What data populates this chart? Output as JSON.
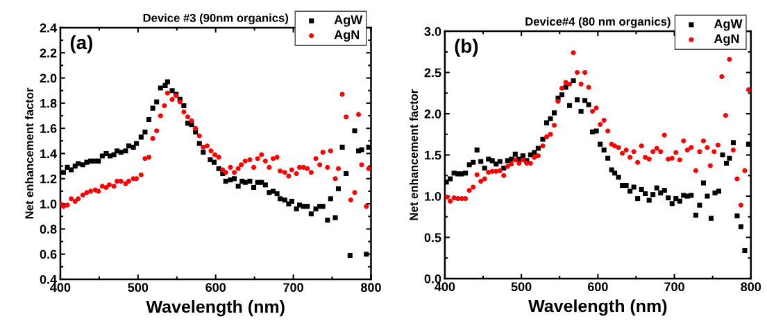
{
  "chart_data": [
    {
      "type": "scatter",
      "title": "Device #3 (90nm organics)",
      "xlabel": "Wavelength (nm)",
      "ylabel": "Net enhancement factor",
      "annotations": [
        "(a)"
      ],
      "xlim": [
        400,
        800
      ],
      "xticks": [
        400,
        500,
        600,
        700,
        800
      ],
      "ylim": [
        0.4,
        2.4
      ],
      "yticks": [
        0.4,
        0.6,
        0.8,
        {
          "value": 1,
          "label": "1.0"
        },
        1.2,
        1.4,
        1.6,
        1.8,
        {
          "value": 2,
          "label": "2.0"
        },
        2.2,
        2.4
      ],
      "legend": "top right",
      "grid": false,
      "series": [
        {
          "name": "AgW",
          "color": "#000000",
          "marker": "square",
          "x": [
            404,
            409,
            414,
            419,
            423,
            429,
            434,
            439,
            445,
            449,
            454,
            459,
            464,
            469,
            473,
            478,
            484,
            488,
            494,
            498,
            504,
            509,
            514,
            519,
            524,
            529,
            535,
            538,
            544,
            549,
            554,
            559,
            564,
            569,
            574,
            579,
            584,
            593,
            598,
            604,
            609,
            613,
            619,
            624,
            629,
            634,
            638,
            644,
            649,
            654,
            659,
            664,
            669,
            674,
            679,
            683,
            689,
            694,
            698,
            704,
            708,
            713,
            718,
            723,
            729,
            734,
            738,
            744,
            748,
            754,
            758,
            763,
            768,
            773,
            779,
            784,
            788,
            794,
            797
          ],
          "values": [
            1.25,
            1.29,
            1.27,
            1.3,
            1.32,
            1.31,
            1.33,
            1.34,
            1.34,
            1.34,
            1.38,
            1.4,
            1.38,
            1.39,
            1.42,
            1.41,
            1.42,
            1.46,
            1.45,
            1.48,
            1.53,
            1.57,
            1.67,
            1.76,
            1.81,
            1.92,
            1.94,
            1.97,
            1.9,
            1.87,
            1.83,
            1.78,
            1.64,
            1.63,
            1.57,
            1.48,
            1.41,
            1.35,
            1.33,
            1.28,
            1.24,
            1.18,
            1.19,
            1.2,
            1.14,
            1.18,
            1.17,
            1.18,
            1.13,
            1.17,
            1.17,
            1.15,
            1.09,
            1.1,
            1.08,
            1.04,
            1.03,
            1.0,
            1.02,
            0.96,
            0.99,
            0.98,
            0.98,
            0.92,
            0.96,
            0.98,
            0.98,
            0.87,
            1.04,
            0.89,
            1.12,
            1.45,
            1.24,
            0.59,
            1.58,
            1.42,
            1.43,
            0.6,
            1.45
          ]
        },
        {
          "name": "AgN",
          "color": "#ff0000",
          "marker": "circle",
          "x": [
            400,
            404,
            409,
            414,
            419,
            423,
            429,
            434,
            439,
            445,
            449,
            454,
            459,
            463,
            469,
            473,
            478,
            484,
            488,
            494,
            498,
            504,
            509,
            514,
            519,
            524,
            529,
            534,
            538,
            544,
            549,
            554,
            559,
            564,
            569,
            574,
            579,
            584,
            589,
            594,
            599,
            604,
            609,
            613,
            619,
            624,
            629,
            633,
            638,
            644,
            649,
            654,
            659,
            664,
            669,
            674,
            679,
            683,
            689,
            694,
            698,
            704,
            708,
            713,
            718,
            723,
            729,
            734,
            738,
            744,
            748,
            754,
            758,
            763,
            768,
            774,
            779,
            784,
            788,
            794,
            797
          ],
          "values": [
            1.0,
            0.98,
            0.99,
            1.04,
            1.02,
            1.04,
            1.07,
            1.09,
            1.1,
            1.11,
            1.1,
            1.14,
            1.13,
            1.15,
            1.14,
            1.18,
            1.18,
            1.16,
            1.18,
            1.2,
            1.2,
            1.23,
            1.36,
            1.37,
            1.52,
            1.58,
            1.7,
            1.78,
            1.88,
            1.83,
            1.86,
            1.81,
            1.73,
            1.69,
            1.66,
            1.6,
            1.54,
            1.45,
            1.46,
            1.42,
            1.39,
            1.37,
            1.27,
            1.25,
            1.29,
            1.25,
            1.28,
            1.31,
            1.34,
            1.35,
            1.29,
            1.36,
            1.39,
            1.34,
            1.29,
            1.36,
            1.37,
            1.26,
            1.25,
            1.22,
            1.27,
            1.24,
            1.29,
            1.29,
            1.28,
            1.25,
            1.36,
            1.31,
            1.41,
            1.29,
            1.42,
            1.2,
            1.28,
            1.87,
            1.69,
            1.03,
            1.09,
            1.71,
            1.31,
            0.98,
            1.28
          ]
        }
      ]
    },
    {
      "type": "scatter",
      "title": "Device#4 (80 nm organics)",
      "xlabel": "Wavelength (nm)",
      "ylabel": "Net enhancement factor",
      "annotations": [
        "(b)"
      ],
      "xlim": [
        400,
        800
      ],
      "xticks": [
        400,
        500,
        600,
        700,
        800
      ],
      "ylim": [
        0,
        3
      ],
      "yticks": [
        {
          "value": 0,
          "label": "0.0"
        },
        0.5,
        {
          "value": 1,
          "label": "1.0"
        },
        1.5,
        {
          "value": 2,
          "label": "2.0"
        },
        2.5,
        {
          "value": 3,
          "label": "3.0"
        }
      ],
      "legend": "top right",
      "grid": false,
      "series": [
        {
          "name": "AgW",
          "color": "#000000",
          "marker": "square",
          "x": [
            402,
            407,
            412,
            417,
            422,
            427,
            432,
            437,
            442,
            447,
            452,
            457,
            462,
            467,
            472,
            477,
            482,
            487,
            492,
            497,
            502,
            507,
            512,
            517,
            522,
            528,
            533,
            538,
            543,
            548,
            553,
            558,
            563,
            568,
            573,
            578,
            583,
            588,
            593,
            598,
            603,
            608,
            613,
            618,
            622,
            627,
            632,
            637,
            642,
            647,
            652,
            657,
            662,
            667,
            672,
            677,
            682,
            687,
            692,
            697,
            702,
            707,
            712,
            717,
            722,
            728,
            733,
            738,
            743,
            748,
            753,
            758,
            763,
            768,
            772,
            777,
            782,
            787,
            792,
            797
          ],
          "values": [
            1.17,
            1.21,
            1.28,
            1.27,
            1.27,
            1.28,
            1.38,
            1.41,
            1.56,
            1.42,
            1.34,
            1.45,
            1.43,
            1.39,
            1.42,
            1.34,
            1.43,
            1.45,
            1.51,
            1.45,
            1.49,
            1.43,
            1.5,
            1.53,
            1.58,
            1.69,
            1.89,
            1.94,
            2.01,
            2.19,
            2.23,
            2.32,
            2.1,
            2.4,
            2.17,
            2.03,
            2.16,
            2.11,
            1.78,
            1.79,
            1.63,
            1.56,
            1.46,
            1.32,
            1.28,
            1.23,
            1.13,
            1.13,
            1.06,
            1.11,
            0.97,
            1.08,
            1.03,
            0.95,
            1.02,
            1.1,
            1.04,
            1.07,
            0.98,
            0.91,
            0.97,
            0.94,
            1.01,
            1.0,
            1.01,
            0.77,
            0.89,
            1.16,
            1.0,
            0.73,
            1.04,
            1.06,
            1.5,
            1.4,
            1.46,
            1.65,
            0.76,
            0.63,
            0.34,
            1.63
          ]
        },
        {
          "name": "AgN",
          "color": "#ff0000",
          "marker": "circle",
          "x": [
            403,
            407,
            412,
            417,
            422,
            427,
            432,
            437,
            442,
            447,
            452,
            457,
            462,
            467,
            472,
            477,
            482,
            487,
            492,
            497,
            502,
            507,
            512,
            517,
            522,
            528,
            533,
            538,
            543,
            548,
            553,
            558,
            563,
            568,
            573,
            578,
            583,
            588,
            593,
            598,
            603,
            608,
            613,
            618,
            622,
            627,
            632,
            637,
            642,
            647,
            652,
            657,
            662,
            667,
            672,
            677,
            682,
            687,
            692,
            697,
            702,
            707,
            712,
            717,
            722,
            728,
            733,
            738,
            743,
            747,
            752,
            757,
            762,
            767,
            772,
            777,
            782,
            787,
            792,
            797
          ],
          "values": [
            0.99,
            0.94,
            0.98,
            0.97,
            0.97,
            0.97,
            1.07,
            1.11,
            1.26,
            1.18,
            1.21,
            1.29,
            1.3,
            1.3,
            1.31,
            1.25,
            1.36,
            1.39,
            1.44,
            1.4,
            1.44,
            1.4,
            1.4,
            1.47,
            1.49,
            1.61,
            1.72,
            1.75,
            1.86,
            2.15,
            2.31,
            2.38,
            2.36,
            2.74,
            2.5,
            2.36,
            2.5,
            2.32,
            2.03,
            2.07,
            1.87,
            1.92,
            1.79,
            1.63,
            1.61,
            1.59,
            1.52,
            1.56,
            1.47,
            1.54,
            1.41,
            1.61,
            1.47,
            1.45,
            1.54,
            1.58,
            1.54,
            1.74,
            1.45,
            1.46,
            1.53,
            1.44,
            1.67,
            1.56,
            1.59,
            1.31,
            1.54,
            1.67,
            1.59,
            1.37,
            1.54,
            1.62,
            2.45,
            1.98,
            2.66,
            1.56,
            1.21,
            0.89,
            1.31,
            2.29
          ]
        }
      ]
    }
  ]
}
